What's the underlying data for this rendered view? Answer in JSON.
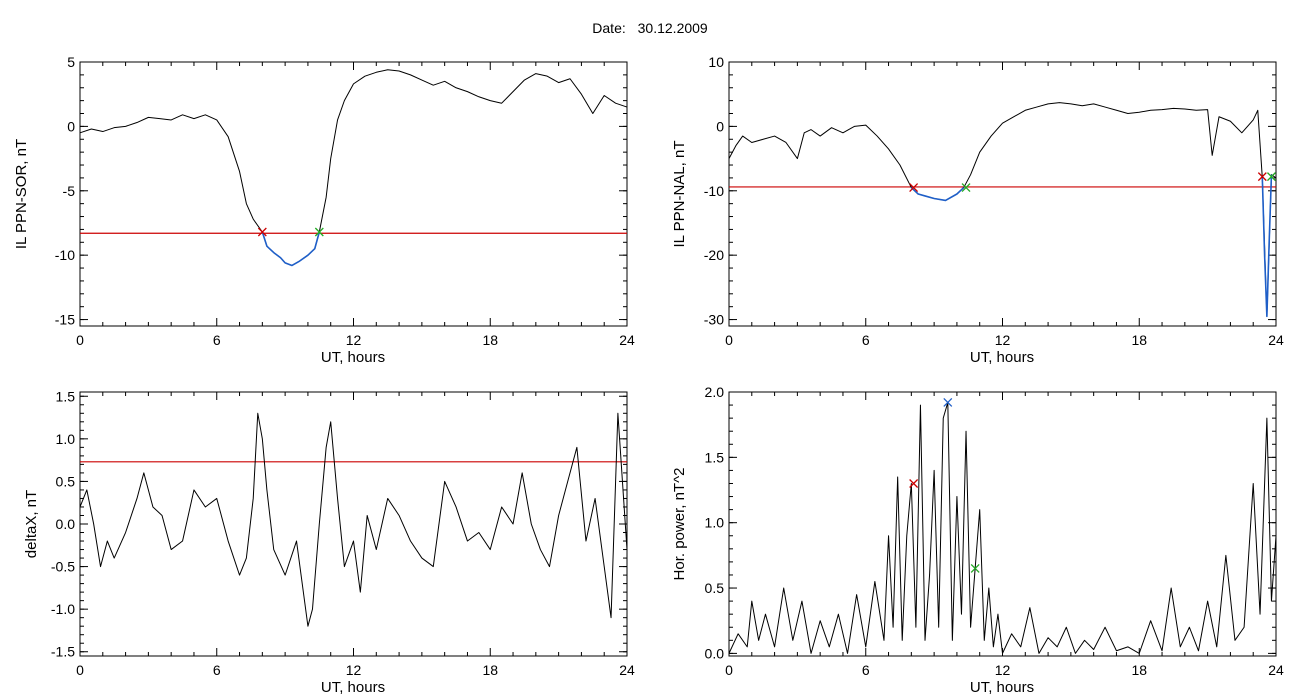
{
  "figure": {
    "title_label": "Date:",
    "title_value": "30.12.2009"
  },
  "colors": {
    "trace": "#000000",
    "threshold": "#cc0000",
    "segment": "#1f5fc8",
    "start_marker": "#cc0000",
    "end_marker": "#22aa22",
    "peak_marker": "#1f5fc8"
  },
  "chart_data": [
    {
      "id": "sor",
      "type": "line",
      "xlabel": "UT, hours",
      "ylabel": "IL PPN-SOR, nT",
      "xlim": [
        0,
        24
      ],
      "ylim": [
        -15.5,
        5
      ],
      "xticks": [
        0,
        6,
        12,
        18,
        24
      ],
      "yticks": [
        -15,
        -10,
        -5,
        0,
        5
      ],
      "series": [
        {
          "role": "trace",
          "x": [
            0,
            0.5,
            1,
            1.5,
            2,
            2.5,
            3,
            3.5,
            4,
            4.5,
            5,
            5.5,
            6,
            6.5,
            7,
            7.3,
            7.6,
            8.0,
            8.2,
            8.5,
            8.8,
            9.0,
            9.3,
            9.6,
            10.0,
            10.3,
            10.5,
            10.8,
            11.0,
            11.3,
            11.6,
            12.0,
            12.5,
            13.0,
            13.5,
            14.0,
            14.5,
            15.0,
            15.5,
            16.0,
            16.5,
            17.0,
            17.5,
            18.0,
            18.5,
            19.0,
            19.5,
            20.0,
            20.5,
            21.0,
            21.5,
            22.0,
            22.5,
            23.0,
            23.5,
            24.0
          ],
          "y": [
            -0.5,
            -0.2,
            -0.4,
            -0.1,
            0.0,
            0.3,
            0.7,
            0.6,
            0.5,
            0.9,
            0.6,
            0.9,
            0.5,
            -0.8,
            -3.5,
            -6.0,
            -7.2,
            -8.2,
            -9.3,
            -9.8,
            -10.2,
            -10.6,
            -10.8,
            -10.5,
            -10.0,
            -9.5,
            -8.2,
            -5.5,
            -2.5,
            0.5,
            2.0,
            3.3,
            3.9,
            4.2,
            4.4,
            4.3,
            4.0,
            3.6,
            3.2,
            3.5,
            3.0,
            2.7,
            2.3,
            2.0,
            1.8,
            2.7,
            3.6,
            4.1,
            3.9,
            3.4,
            3.7,
            2.5,
            1.0,
            2.4,
            1.8,
            1.5
          ]
        },
        {
          "role": "segment",
          "x": [
            8.0,
            8.2,
            8.5,
            8.8,
            9.0,
            9.3,
            9.6,
            10.0,
            10.3,
            10.5
          ],
          "y": [
            -8.2,
            -9.3,
            -9.8,
            -10.2,
            -10.6,
            -10.8,
            -10.5,
            -10.0,
            -9.5,
            -8.2
          ]
        }
      ],
      "threshold": -8.3,
      "markers": [
        {
          "role": "start_marker",
          "x": 8.0,
          "y": -8.2
        },
        {
          "role": "end_marker",
          "x": 10.5,
          "y": -8.2
        }
      ]
    },
    {
      "id": "nal",
      "type": "line",
      "xlabel": "UT, hours",
      "ylabel": "IL PPN-NAL, nT",
      "xlim": [
        0,
        24
      ],
      "ylim": [
        -31,
        10
      ],
      "xticks": [
        0,
        6,
        12,
        18,
        24
      ],
      "yticks": [
        -30,
        -20,
        -10,
        0,
        10
      ],
      "series": [
        {
          "role": "trace",
          "x": [
            0,
            0.3,
            0.6,
            1.0,
            1.5,
            2.0,
            2.5,
            3.0,
            3.3,
            3.6,
            4.0,
            4.5,
            5.0,
            5.5,
            6.0,
            6.5,
            7.0,
            7.5,
            8.0,
            8.3,
            8.6,
            9.0,
            9.5,
            10.0,
            10.3,
            10.6,
            11.0,
            11.5,
            12.0,
            12.5,
            13.0,
            13.5,
            14.0,
            14.5,
            15.0,
            15.5,
            16.0,
            16.5,
            17.0,
            17.5,
            18.0,
            18.5,
            19.0,
            19.5,
            20.0,
            20.5,
            21.0,
            21.2,
            21.5,
            22.0,
            22.5,
            23.0,
            23.2,
            23.4,
            23.6,
            23.8,
            24.0
          ],
          "y": [
            -5.0,
            -3.0,
            -1.5,
            -2.5,
            -2.0,
            -1.5,
            -2.5,
            -5.0,
            -1.0,
            -0.5,
            -1.5,
            -0.2,
            -1.0,
            0.0,
            0.2,
            -1.5,
            -3.5,
            -6.0,
            -9.5,
            -10.5,
            -10.8,
            -11.2,
            -11.5,
            -10.5,
            -9.5,
            -7.5,
            -4.0,
            -1.5,
            0.5,
            1.5,
            2.5,
            3.0,
            3.5,
            3.7,
            3.5,
            3.2,
            3.5,
            3.0,
            2.5,
            2.0,
            2.2,
            2.5,
            2.6,
            2.8,
            2.7,
            2.5,
            2.6,
            -4.5,
            1.5,
            0.8,
            -1.0,
            1.0,
            2.5,
            -8.0,
            -29.5,
            -7.5,
            -8.0
          ]
        },
        {
          "role": "segment",
          "x": [
            8.0,
            8.3,
            8.6,
            9.0,
            9.5,
            10.0,
            10.3
          ],
          "y": [
            -9.5,
            -10.5,
            -10.8,
            -11.2,
            -11.5,
            -10.5,
            -9.5
          ]
        },
        {
          "role": "segment",
          "x": [
            23.4,
            23.5,
            23.6,
            23.7,
            23.8
          ],
          "y": [
            -8.0,
            -20.0,
            -29.5,
            -18.0,
            -7.5
          ]
        }
      ],
      "threshold": -9.4,
      "markers": [
        {
          "role": "start_marker",
          "x": 8.1,
          "y": -9.5
        },
        {
          "role": "end_marker",
          "x": 10.4,
          "y": -9.5
        },
        {
          "role": "start_marker",
          "x": 23.4,
          "y": -7.8
        },
        {
          "role": "end_marker",
          "x": 23.8,
          "y": -7.8
        }
      ]
    },
    {
      "id": "deltax",
      "type": "line",
      "xlabel": "UT, hours",
      "ylabel": "deltaX, nT",
      "xlim": [
        0,
        24
      ],
      "ylim": [
        -1.55,
        1.55
      ],
      "xticks": [
        0,
        6,
        12,
        18,
        24
      ],
      "yticks": [
        -1.5,
        -1.0,
        -0.5,
        0.0,
        0.5,
        1.0,
        1.5
      ],
      "series": [
        {
          "role": "trace",
          "x": [
            0,
            0.3,
            0.6,
            0.9,
            1.2,
            1.5,
            2.0,
            2.5,
            2.8,
            3.2,
            3.6,
            4.0,
            4.5,
            5.0,
            5.5,
            6.0,
            6.5,
            7.0,
            7.3,
            7.6,
            7.8,
            8.0,
            8.2,
            8.5,
            9.0,
            9.5,
            10.0,
            10.2,
            10.5,
            10.8,
            11.0,
            11.3,
            11.6,
            12.0,
            12.3,
            12.6,
            13.0,
            13.5,
            14.0,
            14.5,
            15.0,
            15.5,
            16.0,
            16.5,
            17.0,
            17.5,
            18.0,
            18.5,
            19.0,
            19.4,
            19.8,
            20.2,
            20.6,
            21.0,
            21.4,
            21.8,
            22.2,
            22.6,
            23.0,
            23.3,
            23.6,
            24.0
          ],
          "y": [
            0.2,
            0.4,
            0.0,
            -0.5,
            -0.2,
            -0.4,
            -0.1,
            0.3,
            0.6,
            0.2,
            0.1,
            -0.3,
            -0.2,
            0.4,
            0.2,
            0.3,
            -0.2,
            -0.6,
            -0.4,
            0.3,
            1.3,
            1.0,
            0.4,
            -0.3,
            -0.6,
            -0.2,
            -1.2,
            -1.0,
            0.0,
            0.9,
            1.2,
            0.3,
            -0.5,
            -0.2,
            -0.8,
            0.1,
            -0.3,
            0.3,
            0.1,
            -0.2,
            -0.4,
            -0.5,
            0.5,
            0.2,
            -0.2,
            -0.1,
            -0.3,
            0.2,
            0.0,
            0.6,
            0.0,
            -0.3,
            -0.5,
            0.1,
            0.5,
            0.9,
            -0.2,
            0.3,
            -0.5,
            -1.1,
            1.3,
            -0.3
          ]
        }
      ],
      "threshold": 0.73,
      "markers": []
    },
    {
      "id": "power",
      "type": "line",
      "xlabel": "UT, hours",
      "ylabel": "Hor. power, nT^2",
      "xlim": [
        0,
        24
      ],
      "ylim": [
        -0.02,
        2.0
      ],
      "xticks": [
        0,
        6,
        12,
        18,
        24
      ],
      "yticks": [
        0.0,
        0.5,
        1.0,
        1.5,
        2.0
      ],
      "series": [
        {
          "role": "trace",
          "x": [
            0,
            0.4,
            0.8,
            1.0,
            1.3,
            1.6,
            2.0,
            2.4,
            2.8,
            3.2,
            3.6,
            4.0,
            4.4,
            4.8,
            5.2,
            5.6,
            6.0,
            6.4,
            6.8,
            7.0,
            7.2,
            7.4,
            7.6,
            7.8,
            8.0,
            8.2,
            8.4,
            8.6,
            8.8,
            9.0,
            9.2,
            9.4,
            9.6,
            9.8,
            10.0,
            10.2,
            10.4,
            10.6,
            10.8,
            11.0,
            11.2,
            11.4,
            11.6,
            11.8,
            12.0,
            12.4,
            12.8,
            13.2,
            13.6,
            14.0,
            14.4,
            14.8,
            15.2,
            15.6,
            16.0,
            16.5,
            17.0,
            17.5,
            18.0,
            18.5,
            19.0,
            19.4,
            19.8,
            20.2,
            20.6,
            21.0,
            21.4,
            21.8,
            22.2,
            22.6,
            23.0,
            23.3,
            23.6,
            23.8,
            24.0
          ],
          "y": [
            0.0,
            0.15,
            0.05,
            0.4,
            0.1,
            0.3,
            0.05,
            0.5,
            0.1,
            0.4,
            0.0,
            0.25,
            0.05,
            0.3,
            0.0,
            0.45,
            0.05,
            0.55,
            0.1,
            0.9,
            0.2,
            1.35,
            0.1,
            0.9,
            1.3,
            0.2,
            1.9,
            0.1,
            0.6,
            1.4,
            0.2,
            1.8,
            1.92,
            0.1,
            1.2,
            0.3,
            1.7,
            0.2,
            0.65,
            1.1,
            0.1,
            0.5,
            0.05,
            0.3,
            0.0,
            0.15,
            0.05,
            0.35,
            0.0,
            0.12,
            0.05,
            0.2,
            0.0,
            0.1,
            0.03,
            0.2,
            0.02,
            0.05,
            0.0,
            0.25,
            0.02,
            0.5,
            0.05,
            0.2,
            0.02,
            0.4,
            0.05,
            0.75,
            0.1,
            0.2,
            1.3,
            0.3,
            1.8,
            0.4,
            0.9
          ]
        }
      ],
      "markers": [
        {
          "role": "start_marker",
          "x": 8.1,
          "y": 1.3
        },
        {
          "role": "peak_marker",
          "x": 9.6,
          "y": 1.92
        },
        {
          "role": "end_marker",
          "x": 10.8,
          "y": 0.65
        }
      ]
    }
  ]
}
